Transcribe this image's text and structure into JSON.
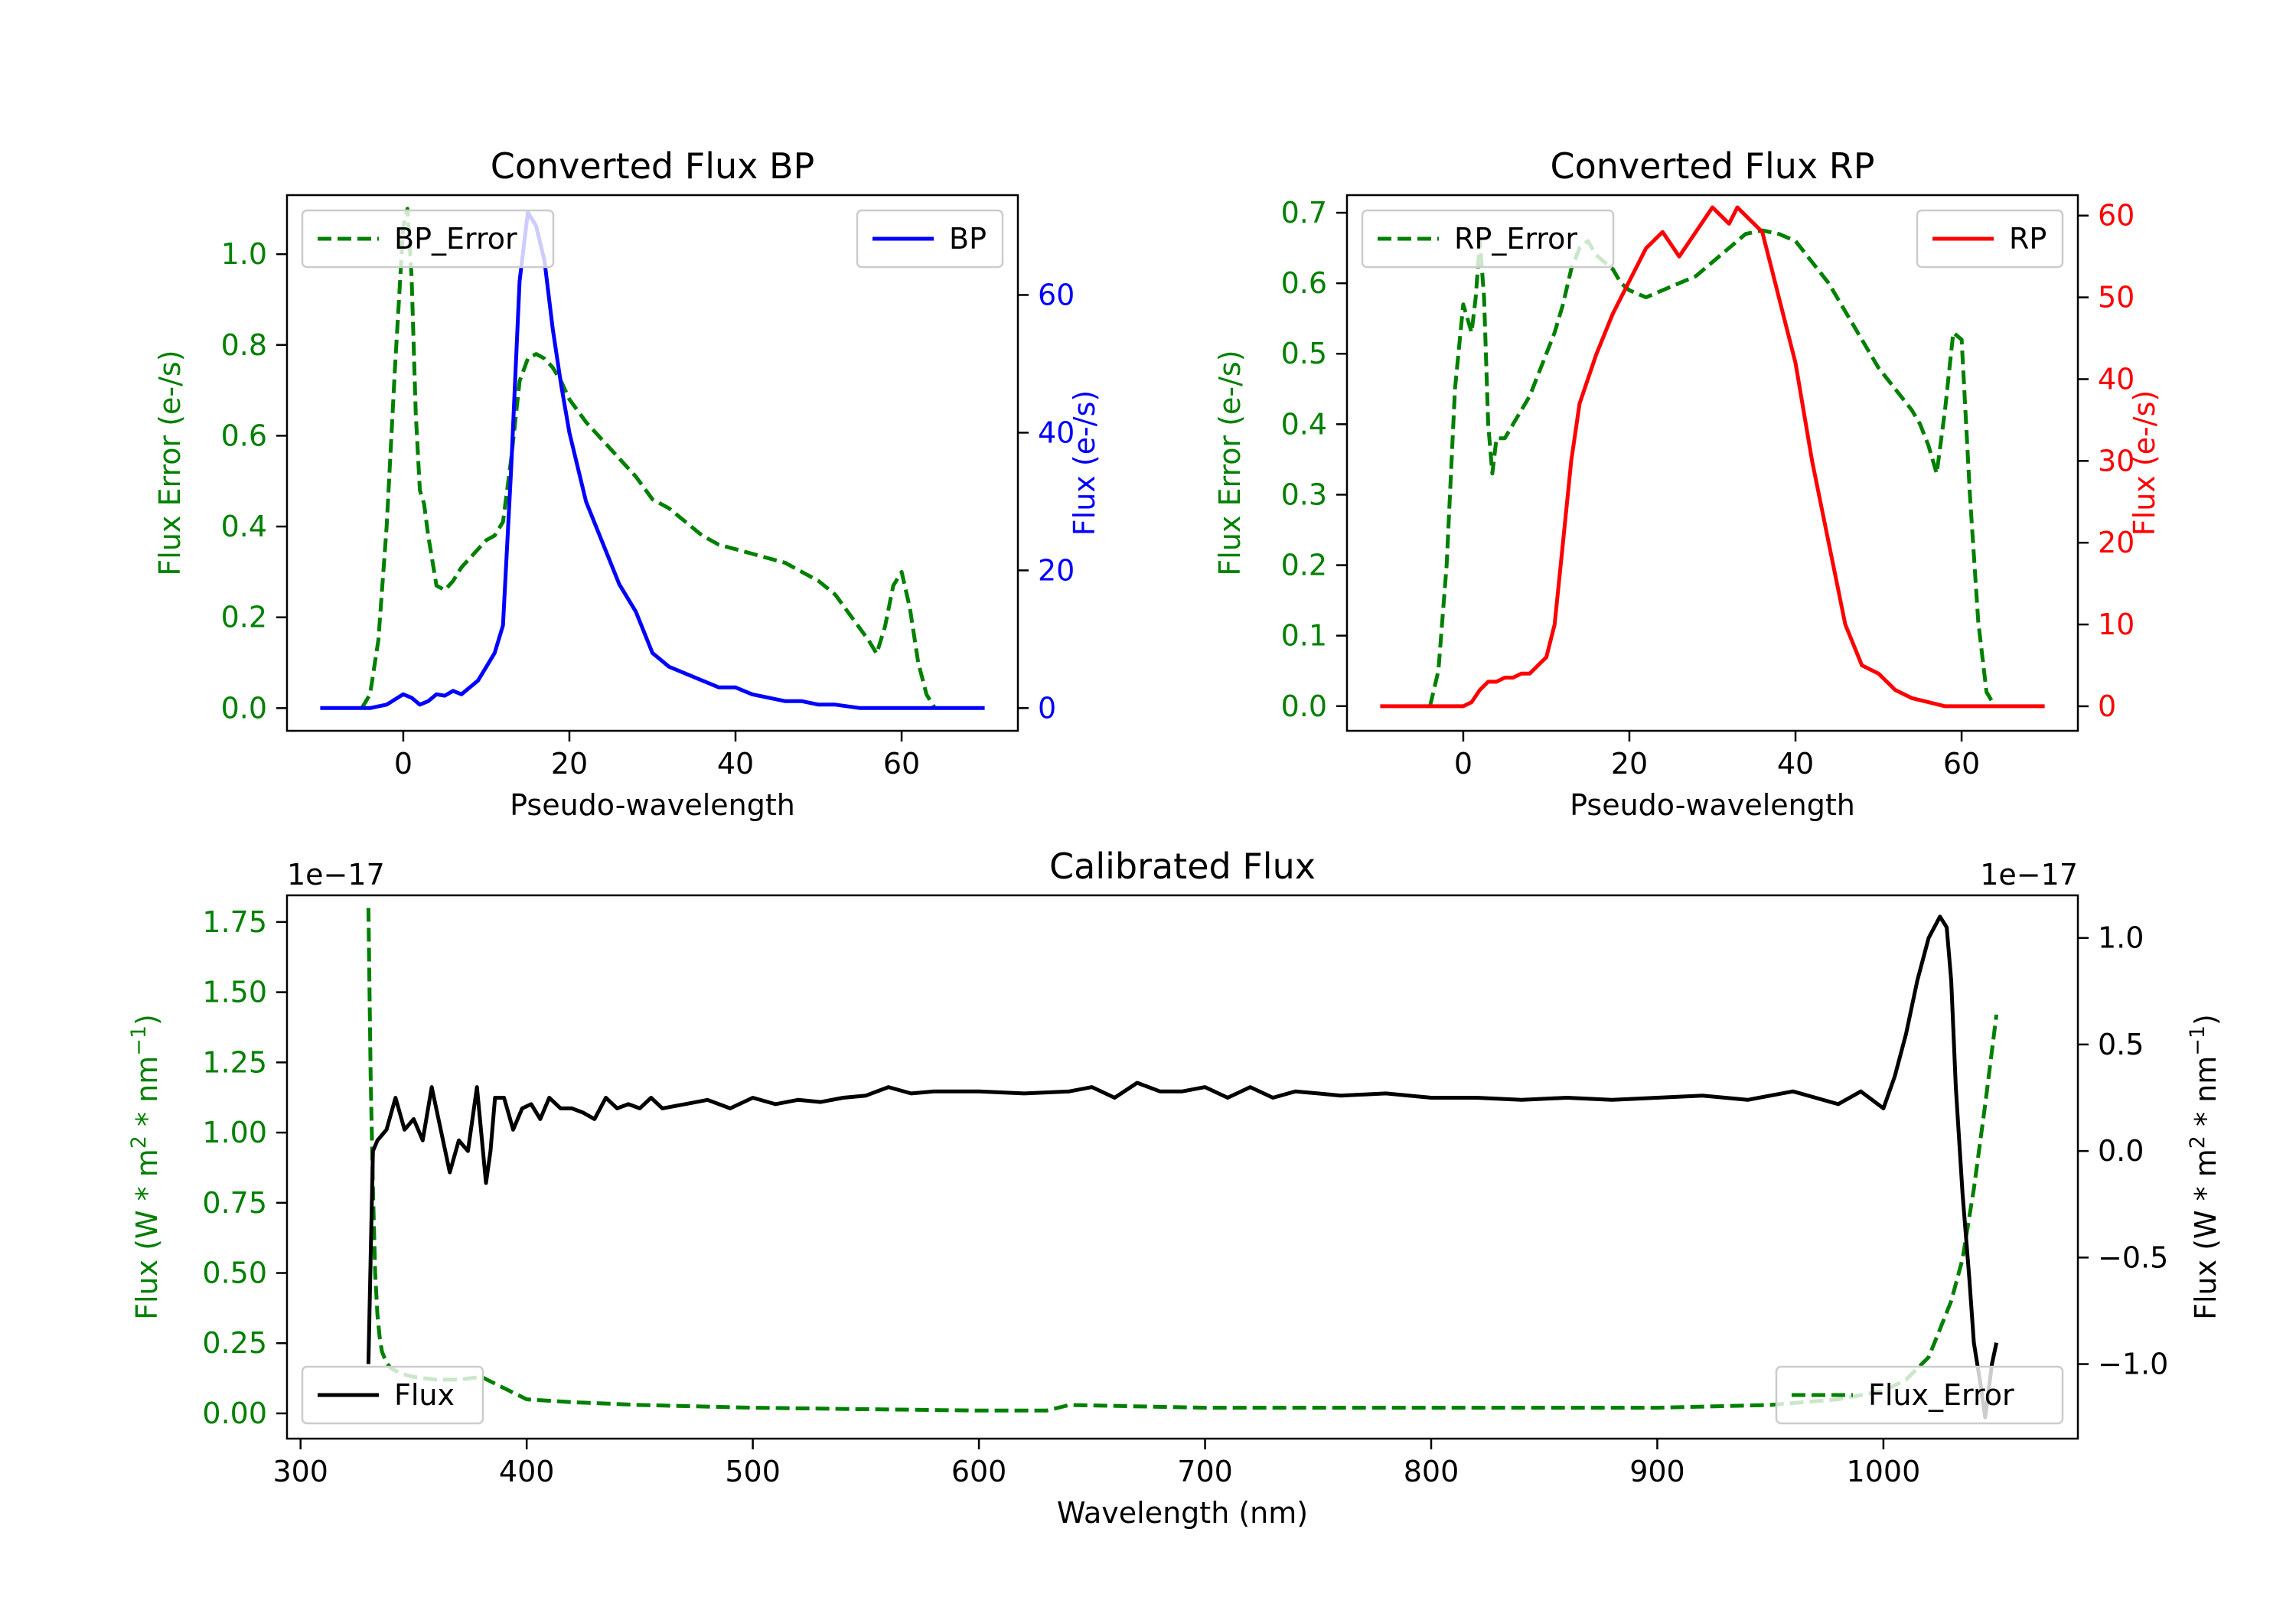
{
  "colors": {
    "error": "#008000",
    "bp": "#0000ff",
    "rp": "#ff0000",
    "flux": "#000000",
    "axis": "#000000"
  },
  "chart_data": [
    {
      "type": "line",
      "title": "Converted Flux BP",
      "xlabel": "Pseudo-wavelength",
      "ylabel_left": "Flux Error (e-/s)",
      "ylabel_right": "Flux (e-/s)",
      "xlim": [
        -14,
        74
      ],
      "ylim_left": [
        -0.05,
        1.13
      ],
      "ylim_right": [
        -3.3,
        74.5
      ],
      "xticks": [
        0,
        20,
        40,
        60
      ],
      "xtick_labels": [
        "0",
        "20",
        "40",
        "60"
      ],
      "yticks_left": [
        0.0,
        0.2,
        0.4,
        0.6,
        0.8,
        1.0
      ],
      "ytick_labels_left": [
        "0.0",
        "0.2",
        "0.4",
        "0.6",
        "0.8",
        "1.0"
      ],
      "yticks_right": [
        0,
        20,
        40,
        60
      ],
      "ytick_labels_right": [
        "0",
        "20",
        "40",
        "60"
      ],
      "legend": [
        {
          "label": "BP_Error",
          "style": "dashed",
          "position": "upper-left"
        },
        {
          "label": "BP",
          "style": "solid",
          "position": "upper-right"
        }
      ],
      "series": [
        {
          "name": "BP_Error",
          "axis": "left",
          "style": "dashed",
          "x": [
            -5,
            -4,
            -3,
            -2,
            -1,
            0,
            0.5,
            1,
            1.5,
            2,
            2.5,
            3,
            4,
            5,
            6,
            7,
            8,
            9,
            10,
            11,
            12,
            13,
            14,
            15,
            16,
            17,
            18,
            19,
            20,
            22,
            24,
            26,
            28,
            30,
            32,
            34,
            36,
            38,
            40,
            42,
            44,
            46,
            48,
            50,
            52,
            54,
            56,
            57,
            58,
            59,
            60,
            61,
            62,
            63,
            64
          ],
          "y": [
            0.0,
            0.03,
            0.15,
            0.4,
            0.75,
            1.06,
            1.1,
            0.95,
            0.65,
            0.48,
            0.45,
            0.38,
            0.27,
            0.26,
            0.28,
            0.31,
            0.33,
            0.35,
            0.37,
            0.38,
            0.41,
            0.55,
            0.72,
            0.77,
            0.78,
            0.77,
            0.75,
            0.72,
            0.68,
            0.63,
            0.59,
            0.55,
            0.51,
            0.46,
            0.44,
            0.41,
            0.38,
            0.36,
            0.35,
            0.34,
            0.33,
            0.32,
            0.3,
            0.28,
            0.25,
            0.2,
            0.15,
            0.12,
            0.18,
            0.27,
            0.3,
            0.22,
            0.1,
            0.03,
            0.0
          ]
        },
        {
          "name": "BP",
          "axis": "right",
          "style": "solid",
          "x": [
            -10,
            -8,
            -6,
            -4,
            -2,
            0,
            1,
            2,
            3,
            4,
            5,
            6,
            7,
            8,
            9,
            10,
            11,
            12,
            13,
            14,
            15,
            16,
            17,
            18,
            19,
            20,
            22,
            24,
            26,
            28,
            30,
            31,
            32,
            34,
            36,
            38,
            40,
            42,
            44,
            46,
            48,
            50,
            52,
            55,
            60,
            65,
            70
          ],
          "y": [
            0,
            0,
            0,
            0,
            0.5,
            2,
            1.5,
            0.5,
            1,
            2,
            1.8,
            2.5,
            2,
            3,
            4,
            6,
            8,
            12,
            35,
            62,
            72,
            70,
            65,
            55,
            47,
            40,
            30,
            24,
            18,
            14,
            8,
            7,
            6,
            5,
            4,
            3,
            3,
            2,
            1.5,
            1,
            1,
            0.5,
            0.5,
            0,
            0,
            0,
            0
          ]
        }
      ]
    },
    {
      "type": "line",
      "title": "Converted Flux RP",
      "xlabel": "Pseudo-wavelength",
      "ylabel_left": "Flux Error (e-/s)",
      "ylabel_right": "Flux (e-/s)",
      "xlim": [
        -14,
        74
      ],
      "ylim_left": [
        -0.035,
        0.725
      ],
      "ylim_right": [
        -3,
        62.5
      ],
      "xticks": [
        0,
        20,
        40,
        60
      ],
      "xtick_labels": [
        "0",
        "20",
        "40",
        "60"
      ],
      "yticks_left": [
        0.0,
        0.1,
        0.2,
        0.3,
        0.4,
        0.5,
        0.6,
        0.7
      ],
      "ytick_labels_left": [
        "0.0",
        "0.1",
        "0.2",
        "0.3",
        "0.4",
        "0.5",
        "0.6",
        "0.7"
      ],
      "yticks_right": [
        0,
        10,
        20,
        30,
        40,
        50,
        60
      ],
      "ytick_labels_right": [
        "0",
        "10",
        "20",
        "30",
        "40",
        "50",
        "60"
      ],
      "legend": [
        {
          "label": "RP_Error",
          "style": "dashed",
          "position": "upper-left"
        },
        {
          "label": "RP",
          "style": "solid",
          "position": "upper-right"
        }
      ],
      "series": [
        {
          "name": "RP_Error",
          "axis": "left",
          "style": "dashed",
          "x": [
            -4,
            -3,
            -2,
            -1,
            0,
            0.5,
            1,
            1.5,
            2,
            2.5,
            3,
            3.5,
            4,
            5,
            6,
            7,
            8,
            9,
            10,
            11,
            12,
            13,
            14,
            15,
            16,
            17,
            18,
            19,
            20,
            22,
            24,
            26,
            28,
            30,
            32,
            34,
            36,
            38,
            40,
            42,
            44,
            46,
            48,
            50,
            52,
            54,
            55,
            56,
            57,
            58,
            59,
            60,
            61,
            62,
            63,
            64
          ],
          "y": [
            0.0,
            0.05,
            0.2,
            0.45,
            0.57,
            0.55,
            0.53,
            0.58,
            0.66,
            0.58,
            0.4,
            0.33,
            0.38,
            0.38,
            0.4,
            0.42,
            0.44,
            0.47,
            0.5,
            0.53,
            0.57,
            0.62,
            0.65,
            0.66,
            0.64,
            0.63,
            0.62,
            0.6,
            0.59,
            0.58,
            0.59,
            0.6,
            0.61,
            0.63,
            0.65,
            0.67,
            0.675,
            0.67,
            0.66,
            0.63,
            0.6,
            0.56,
            0.52,
            0.48,
            0.45,
            0.42,
            0.4,
            0.37,
            0.33,
            0.42,
            0.53,
            0.52,
            0.3,
            0.12,
            0.02,
            0.0
          ]
        },
        {
          "name": "RP",
          "axis": "right",
          "style": "solid",
          "x": [
            -10,
            -5,
            -2,
            0,
            1,
            2,
            3,
            4,
            5,
            6,
            7,
            8,
            9,
            10,
            11,
            12,
            13,
            14,
            16,
            18,
            20,
            22,
            24,
            26,
            28,
            30,
            31,
            32,
            33,
            34,
            35,
            36,
            37,
            38,
            40,
            42,
            44,
            46,
            48,
            50,
            52,
            54,
            56,
            58,
            60,
            65,
            70
          ],
          "y": [
            0,
            0,
            0,
            0,
            0.5,
            2,
            3,
            3,
            3.5,
            3.5,
            4,
            4,
            5,
            6,
            10,
            20,
            30,
            37,
            43,
            48,
            52,
            56,
            58,
            55,
            58,
            61,
            60,
            59,
            61,
            60,
            59,
            58,
            54,
            50,
            42,
            30,
            20,
            10,
            5,
            4,
            2,
            1,
            0.5,
            0,
            0,
            0,
            0
          ]
        }
      ]
    },
    {
      "type": "line",
      "title": "Calibrated Flux",
      "xlabel": "Wavelength (nm)",
      "ylabel_left": "Flux (W * m",
      "ylabel_left_exp": "2",
      "ylabel_left_mid": " * nm",
      "ylabel_left_exp2": "−1",
      "ylabel_left_end": ")",
      "ylabel_right": "Flux (W * m",
      "ylabel_right_exp": "2",
      "ylabel_right_mid": " * nm",
      "ylabel_right_exp2": "−1",
      "ylabel_right_end": ")",
      "offset_left": "1e−17",
      "offset_right": "1e−17",
      "xlim": [
        294,
        1086
      ],
      "ylim_left": [
        -0.09,
        1.845
      ],
      "ylim_right": [
        -1.35,
        1.2
      ],
      "xticks": [
        300,
        400,
        500,
        600,
        700,
        800,
        900,
        1000
      ],
      "xtick_labels": [
        "300",
        "400",
        "500",
        "600",
        "700",
        "800",
        "900",
        "1000"
      ],
      "yticks_left": [
        0.0,
        0.25,
        0.5,
        0.75,
        1.0,
        1.25,
        1.5,
        1.75
      ],
      "ytick_labels_left": [
        "0.00",
        "0.25",
        "0.50",
        "0.75",
        "1.00",
        "1.25",
        "1.50",
        "1.75"
      ],
      "yticks_right": [
        -1.0,
        -0.5,
        0.0,
        0.5,
        1.0
      ],
      "ytick_labels_right": [
        "−1.0",
        "−0.5",
        "0.0",
        "0.5",
        "1.0"
      ],
      "legend": [
        {
          "label": "Flux",
          "style": "solid",
          "position": "lower-left"
        },
        {
          "label": "Flux_Error",
          "style": "dashed",
          "position": "lower-right"
        }
      ],
      "series": [
        {
          "name": "Flux_Error",
          "axis": "left",
          "style": "dashed",
          "x": [
            330,
            331,
            332,
            333,
            334,
            335,
            336,
            338,
            340,
            345,
            350,
            360,
            370,
            380,
            390,
            400,
            420,
            450,
            500,
            550,
            600,
            630,
            640,
            700,
            800,
            900,
            950,
            980,
            1000,
            1010,
            1020,
            1025,
            1030,
            1035,
            1040,
            1045,
            1050
          ],
          "y": [
            1.8,
            1.2,
            0.8,
            0.5,
            0.35,
            0.27,
            0.22,
            0.18,
            0.16,
            0.14,
            0.13,
            0.12,
            0.12,
            0.13,
            0.09,
            0.05,
            0.04,
            0.03,
            0.02,
            0.015,
            0.01,
            0.01,
            0.03,
            0.02,
            0.02,
            0.02,
            0.03,
            0.05,
            0.08,
            0.12,
            0.2,
            0.3,
            0.4,
            0.55,
            0.8,
            1.1,
            1.42
          ]
        },
        {
          "name": "Flux",
          "axis": "right",
          "style": "solid",
          "x": [
            330,
            331,
            332,
            334,
            338,
            342,
            346,
            350,
            354,
            358,
            362,
            366,
            370,
            374,
            378,
            382,
            384,
            386,
            390,
            394,
            398,
            402,
            406,
            410,
            415,
            420,
            425,
            430,
            435,
            440,
            445,
            450,
            455,
            460,
            470,
            480,
            490,
            500,
            510,
            520,
            530,
            540,
            550,
            560,
            570,
            580,
            600,
            620,
            640,
            650,
            660,
            670,
            680,
            690,
            700,
            710,
            720,
            730,
            740,
            750,
            760,
            780,
            800,
            820,
            840,
            860,
            880,
            900,
            920,
            940,
            960,
            980,
            990,
            1000,
            1005,
            1010,
            1015,
            1020,
            1025,
            1028,
            1030,
            1032,
            1035,
            1038,
            1040,
            1043,
            1045,
            1048,
            1050
          ],
          "y": [
            -1.0,
            -0.5,
            0.0,
            0.05,
            0.1,
            0.25,
            0.1,
            0.15,
            0.05,
            0.3,
            0.1,
            -0.1,
            0.05,
            0.0,
            0.3,
            -0.15,
            0.0,
            0.25,
            0.25,
            0.1,
            0.2,
            0.22,
            0.15,
            0.25,
            0.2,
            0.2,
            0.18,
            0.15,
            0.25,
            0.2,
            0.22,
            0.2,
            0.25,
            0.2,
            0.22,
            0.24,
            0.2,
            0.25,
            0.22,
            0.24,
            0.23,
            0.25,
            0.26,
            0.3,
            0.27,
            0.28,
            0.28,
            0.27,
            0.28,
            0.3,
            0.25,
            0.32,
            0.28,
            0.28,
            0.3,
            0.25,
            0.3,
            0.25,
            0.28,
            0.27,
            0.26,
            0.27,
            0.25,
            0.25,
            0.24,
            0.25,
            0.24,
            0.25,
            0.26,
            0.24,
            0.28,
            0.22,
            0.28,
            0.2,
            0.35,
            0.55,
            0.8,
            1.0,
            1.1,
            1.05,
            0.8,
            0.3,
            -0.2,
            -0.6,
            -0.9,
            -1.1,
            -1.25,
            -1.0,
            -0.9
          ]
        }
      ]
    }
  ]
}
